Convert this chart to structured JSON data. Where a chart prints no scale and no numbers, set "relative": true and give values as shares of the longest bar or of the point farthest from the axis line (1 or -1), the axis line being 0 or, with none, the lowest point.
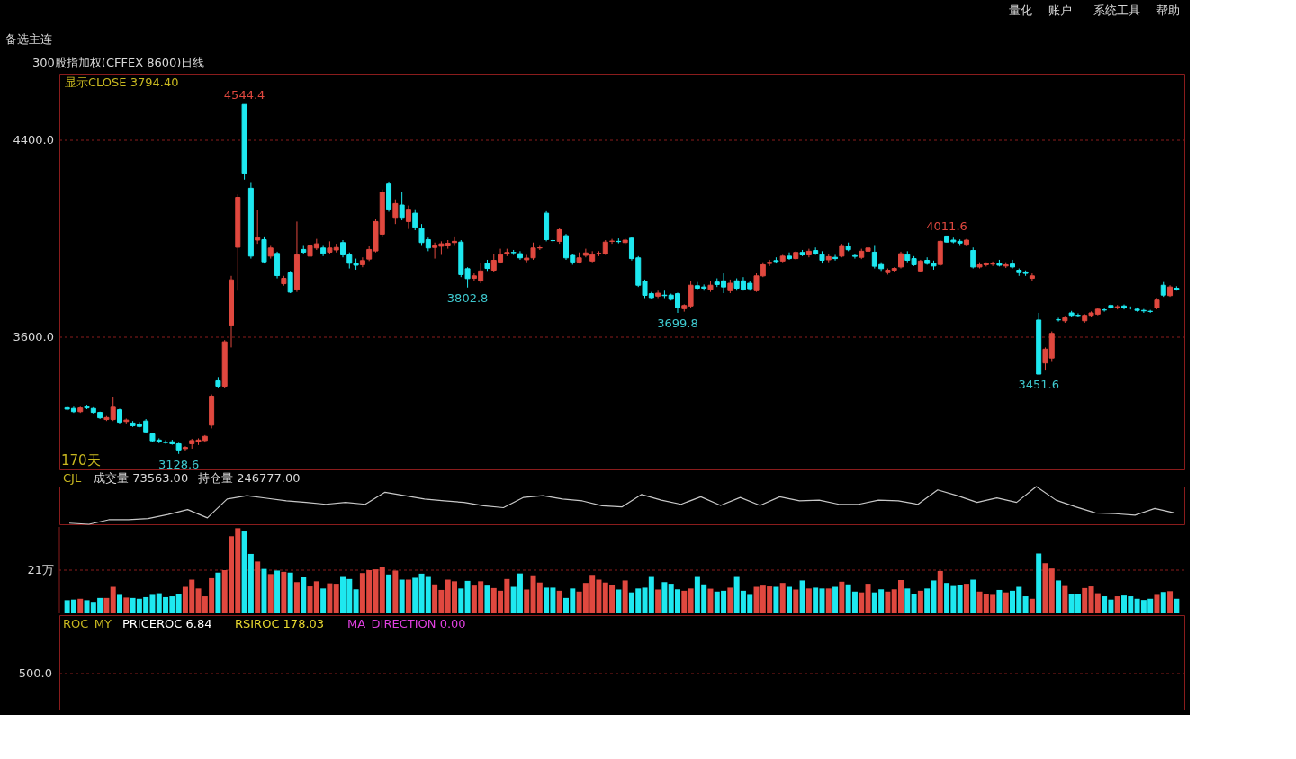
{
  "chart_data": [
    {
      "type": "candlestick",
      "title": "300股指加权(CFFEX 8600)日线",
      "subtitle": "显示CLOSE 3794.40",
      "categories": [
        null,
        null,
        null,
        null,
        null,
        null,
        null,
        null,
        null,
        null,
        null,
        null,
        null,
        null,
        null,
        null,
        null,
        null,
        null,
        null,
        null,
        null,
        null,
        null,
        null,
        null,
        null,
        null,
        null,
        null,
        null,
        null,
        null,
        null,
        null,
        null,
        null,
        null,
        null,
        null,
        null,
        null,
        null,
        null,
        null,
        null,
        null,
        null,
        null,
        null,
        null,
        null,
        null,
        null,
        null,
        null,
        null,
        null,
        null,
        null,
        null,
        null,
        null,
        null,
        null,
        null,
        null,
        null,
        null,
        null,
        null,
        null,
        null,
        null,
        null,
        null,
        null,
        null,
        null,
        null,
        null,
        null,
        null,
        null,
        null,
        null,
        null,
        null,
        null,
        null,
        null,
        null,
        null,
        null,
        null,
        null,
        null,
        null,
        null,
        null,
        null,
        null,
        null,
        null,
        null,
        null,
        null,
        null,
        null,
        null,
        null,
        null,
        null,
        null,
        null,
        null,
        null,
        null,
        null,
        null,
        null,
        null,
        null,
        null,
        null,
        null,
        null,
        null,
        null,
        null,
        null,
        null,
        null,
        null,
        null,
        null,
        null,
        null,
        null,
        null,
        null,
        null,
        null,
        null,
        null,
        null,
        null,
        null,
        null,
        null,
        null,
        null,
        null,
        null,
        null,
        null,
        null,
        null,
        null,
        null,
        null,
        null,
        null,
        null,
        null,
        null,
        null,
        null,
        null,
        null
      ],
      "ohlc": [
        [
          3316,
          3325,
          3305,
          3310
        ],
        [
          3313,
          3320,
          3295,
          3300
        ],
        [
          3300,
          3320,
          3295,
          3315
        ],
        [
          3320,
          3328,
          3310,
          3315
        ],
        [
          3313,
          3318,
          3292,
          3297
        ],
        [
          3297,
          3300,
          3270,
          3275
        ],
        [
          3268,
          3282,
          3262,
          3276
        ],
        [
          3268,
          3358,
          3262,
          3318
        ],
        [
          3308,
          3312,
          3250,
          3257
        ],
        [
          3260,
          3272,
          3252,
          3266
        ],
        [
          3254,
          3262,
          3238,
          3243
        ],
        [
          3250,
          3258,
          3236,
          3240
        ],
        [
          3262,
          3270,
          3212,
          3218
        ],
        [
          3210,
          3214,
          3176,
          3182
        ],
        [
          3185,
          3192,
          3172,
          3178
        ],
        [
          3176,
          3184,
          3170,
          3175
        ],
        [
          3178,
          3186,
          3166,
          3170
        ],
        [
          3170,
          3174,
          3128.6,
          3145
        ],
        [
          3150,
          3160,
          3140,
          3155
        ],
        [
          3170,
          3190,
          3150,
          3183
        ],
        [
          3178,
          3192,
          3165,
          3185
        ],
        [
          3183,
          3205,
          3175,
          3200
        ],
        [
          3245,
          3370,
          3232,
          3363
        ],
        [
          3425,
          3440,
          3398,
          3403
        ],
        [
          3403,
          3590,
          3395,
          3583
        ],
        [
          3650,
          3850,
          3560,
          3834
        ],
        [
          3966,
          4180,
          3790,
          4168
        ],
        [
          4544.4,
          4544.4,
          4240,
          4266
        ],
        [
          4205,
          4230,
          3920,
          3930
        ],
        [
          3995,
          4117,
          3980,
          4005
        ],
        [
          3997,
          4010,
          3900,
          3907
        ],
        [
          3930,
          3975,
          3920,
          3963
        ],
        [
          3941,
          3948,
          3840,
          3851
        ],
        [
          3818,
          3850,
          3810,
          3840
        ],
        [
          3862,
          3870,
          3780,
          3784
        ],
        [
          3795,
          4070,
          3785,
          3935
        ],
        [
          3957,
          3975,
          3940,
          3946
        ],
        [
          3930,
          3990,
          3925,
          3975
        ],
        [
          3963,
          4000,
          3955,
          3980
        ],
        [
          3963,
          3975,
          3930,
          3941
        ],
        [
          3946,
          3990,
          3940,
          3963
        ],
        [
          3955,
          3980,
          3945,
          3965
        ],
        [
          3985,
          3995,
          3925,
          3935
        ],
        [
          3935,
          3945,
          3880,
          3901
        ],
        [
          3901,
          3920,
          3875,
          3893
        ],
        [
          3895,
          3925,
          3885,
          3912
        ],
        [
          3918,
          3970,
          3910,
          3957
        ],
        [
          3951,
          4080,
          3945,
          4070
        ],
        [
          4019,
          4200,
          4010,
          4188
        ],
        [
          4222,
          4232,
          4110,
          4120
        ],
        [
          4087,
          4160,
          4060,
          4143
        ],
        [
          4137,
          4190,
          4075,
          4087
        ],
        [
          4070,
          4135,
          4040,
          4120
        ],
        [
          4104,
          4120,
          4035,
          4047
        ],
        [
          4042,
          4060,
          3975,
          3985
        ],
        [
          3997,
          4005,
          3950,
          3963
        ],
        [
          3965,
          3985,
          3920,
          3975
        ],
        [
          3970,
          3990,
          3935,
          3980
        ],
        [
          3975,
          3995,
          3960,
          3982
        ],
        [
          3985,
          4010,
          3975,
          3990
        ],
        [
          3987,
          3995,
          3845,
          3855
        ],
        [
          3879,
          3885,
          3802.8,
          3839
        ],
        [
          3840,
          3860,
          3830,
          3850
        ],
        [
          3829,
          3903,
          3820,
          3870
        ],
        [
          3900,
          3915,
          3870,
          3880
        ],
        [
          3873,
          3940,
          3865,
          3913
        ],
        [
          3906,
          3960,
          3900,
          3936
        ],
        [
          3940,
          3960,
          3930,
          3945
        ],
        [
          3945,
          3955,
          3935,
          3944
        ],
        [
          3940,
          3950,
          3915,
          3923
        ],
        [
          3915,
          3935,
          3905,
          3922
        ],
        [
          3923,
          3985,
          3915,
          3963
        ],
        [
          3963,
          3975,
          3955,
          3964
        ],
        [
          4104,
          4112,
          3990,
          3997
        ],
        [
          3993,
          4000,
          3985,
          3993
        ],
        [
          3990,
          4045,
          3980,
          4037
        ],
        [
          4013,
          4020,
          3915,
          3923
        ],
        [
          3933,
          3940,
          3895,
          3906
        ],
        [
          3906,
          3945,
          3900,
          3923
        ],
        [
          3933,
          3960,
          3925,
          3943
        ],
        [
          3910,
          3950,
          3905,
          3936
        ],
        [
          3940,
          3950,
          3930,
          3941
        ],
        [
          3940,
          3995,
          3935,
          3987
        ],
        [
          3990,
          4000,
          3980,
          3991
        ],
        [
          3990,
          4002,
          3982,
          3989
        ],
        [
          3985,
          4002,
          3978,
          3995
        ],
        [
          4003,
          4008,
          3912,
          3920
        ],
        [
          3923,
          3930,
          3805,
          3812
        ],
        [
          3829,
          3835,
          3760,
          3771
        ],
        [
          3778,
          3785,
          3755,
          3762
        ],
        [
          3768,
          3790,
          3760,
          3780
        ],
        [
          3772,
          3790,
          3760,
          3770
        ],
        [
          3772,
          3778,
          3750,
          3755
        ],
        [
          3778,
          3782,
          3699.8,
          3721
        ],
        [
          3717,
          3735,
          3705,
          3730
        ],
        [
          3728,
          3830,
          3720,
          3812
        ],
        [
          3810,
          3825,
          3795,
          3800
        ],
        [
          3805,
          3815,
          3790,
          3800
        ],
        [
          3795,
          3830,
          3785,
          3812
        ],
        [
          3825,
          3840,
          3805,
          3815
        ],
        [
          3830,
          3860,
          3780,
          3805
        ],
        [
          3790,
          3835,
          3780,
          3820
        ],
        [
          3830,
          3840,
          3790,
          3800
        ],
        [
          3830,
          3845,
          3790,
          3795
        ],
        [
          3820,
          3830,
          3790,
          3798
        ],
        [
          3790,
          3860,
          3785,
          3850
        ],
        [
          3850,
          3905,
          3845,
          3895
        ],
        [
          3900,
          3915,
          3890,
          3905
        ],
        [
          3912,
          3925,
          3900,
          3908
        ],
        [
          3910,
          3935,
          3905,
          3930
        ],
        [
          3930,
          3945,
          3915,
          3920
        ],
        [
          3920,
          3950,
          3915,
          3945
        ],
        [
          3945,
          3955,
          3930,
          3935
        ],
        [
          3935,
          3960,
          3925,
          3950
        ],
        [
          3953,
          3965,
          3935,
          3940
        ],
        [
          3936,
          3950,
          3900,
          3913
        ],
        [
          3915,
          3940,
          3905,
          3928
        ],
        [
          3925,
          3935,
          3912,
          3920
        ],
        [
          3930,
          3980,
          3925,
          3973
        ],
        [
          3970,
          3985,
          3950,
          3956
        ],
        [
          3932,
          3940,
          3920,
          3929
        ],
        [
          3925,
          3960,
          3918,
          3950
        ],
        [
          3950,
          3970,
          3945,
          3963
        ],
        [
          3946,
          3975,
          3880,
          3889
        ],
        [
          3896,
          3905,
          3870,
          3879
        ],
        [
          3863,
          3880,
          3855,
          3873
        ],
        [
          3873,
          3885,
          3865,
          3880
        ],
        [
          3886,
          3948,
          3880,
          3940
        ],
        [
          3936,
          3950,
          3905,
          3913
        ],
        [
          3920,
          3930,
          3890,
          3895
        ],
        [
          3870,
          3915,
          3865,
          3910
        ],
        [
          3913,
          3925,
          3895,
          3900
        ],
        [
          3900,
          3912,
          3875,
          3890
        ],
        [
          3896,
          3995,
          3890,
          3990
        ],
        [
          4011.6,
          4011.6,
          3985,
          3987
        ],
        [
          3995,
          4005,
          3982,
          3988
        ],
        [
          3990,
          3998,
          3975,
          3983
        ],
        [
          3978,
          4000,
          3972,
          3995
        ],
        [
          3953,
          3965,
          3880,
          3886
        ],
        [
          3886,
          3905,
          3880,
          3895
        ],
        [
          3895,
          3905,
          3888,
          3900
        ],
        [
          3898,
          3908,
          3890,
          3898
        ],
        [
          3900,
          3915,
          3888,
          3893
        ],
        [
          3890,
          3905,
          3882,
          3895
        ],
        [
          3898,
          3915,
          3880,
          3886
        ],
        [
          3873,
          3880,
          3850,
          3863
        ],
        [
          3866,
          3872,
          3850,
          3860
        ],
        [
          3840,
          3860,
          3830,
          3850
        ],
        [
          3671,
          3700,
          3451.6,
          3452
        ],
        [
          3497,
          3560,
          3470,
          3553
        ],
        [
          3517,
          3625,
          3505,
          3617
        ],
        [
          3672,
          3680,
          3665,
          3672
        ],
        [
          3668,
          3688,
          3660,
          3680
        ],
        [
          3700,
          3708,
          3685,
          3690
        ],
        [
          3690,
          3698,
          3684,
          3690
        ],
        [
          3668,
          3695,
          3660,
          3690
        ],
        [
          3690,
          3706,
          3684,
          3700
        ],
        [
          3695,
          3720,
          3690,
          3715
        ],
        [
          3712,
          3720,
          3705,
          3712
        ],
        [
          3730,
          3738,
          3715,
          3720
        ],
        [
          3720,
          3732,
          3714,
          3725
        ],
        [
          3728,
          3734,
          3714,
          3720
        ],
        [
          3720,
          3726,
          3714,
          3720
        ],
        [
          3715,
          3722,
          3705,
          3710
        ],
        [
          3710,
          3716,
          3700,
          3708
        ],
        [
          3706,
          3712,
          3700,
          3706
        ],
        [
          3720,
          3760,
          3715,
          3752
        ],
        [
          3812,
          3825,
          3765,
          3772
        ],
        [
          3770,
          3812,
          3765,
          3805
        ],
        [
          3800,
          3808,
          3790,
          3794.4
        ]
      ],
      "colors": [
        "#1ee8f0",
        "#1ee8f0",
        "#e0483f",
        "#1ee8f0",
        "#1ee8f0",
        "#1ee8f0",
        "#e0483f",
        "#e0483f",
        "#1ee8f0",
        "#e0483f",
        "#1ee8f0",
        "#1ee8f0",
        "#1ee8f0",
        "#1ee8f0",
        "#1ee8f0",
        "#1ee8f0",
        "#1ee8f0",
        "#1ee8f0",
        "#e0483f",
        "#e0483f",
        "#e0483f",
        "#e0483f",
        "#e0483f",
        "#1ee8f0",
        "#e0483f",
        "#e0483f",
        "#e0483f",
        "#1ee8f0",
        "#1ee8f0",
        "#e0483f",
        "#1ee8f0",
        "#e0483f",
        "#1ee8f0",
        "#e0483f",
        "#1ee8f0",
        "#e0483f",
        "#1ee8f0",
        "#e0483f",
        "#e0483f",
        "#1ee8f0",
        "#e0483f",
        "#e0483f",
        "#1ee8f0",
        "#1ee8f0",
        "#1ee8f0",
        "#e0483f",
        "#e0483f",
        "#e0483f",
        "#e0483f",
        "#1ee8f0",
        "#e0483f",
        "#1ee8f0",
        "#e0483f",
        "#1ee8f0",
        "#1ee8f0",
        "#1ee8f0",
        "#e0483f",
        "#e0483f",
        "#e0483f",
        "#e0483f",
        "#1ee8f0",
        "#1ee8f0",
        "#e0483f",
        "#e0483f",
        "#1ee8f0",
        "#e0483f",
        "#e0483f",
        "#e0483f",
        "#1ee8f0",
        "#1ee8f0",
        "#e0483f",
        "#e0483f",
        "#e0483f",
        "#1ee8f0",
        "#1ee8f0",
        "#e0483f",
        "#1ee8f0",
        "#1ee8f0",
        "#e0483f",
        "#e0483f",
        "#e0483f",
        "#e0483f",
        "#e0483f",
        "#e0483f",
        "#1ee8f0",
        "#e0483f",
        "#1ee8f0",
        "#1ee8f0",
        "#1ee8f0",
        "#1ee8f0",
        "#e0483f",
        "#1ee8f0",
        "#1ee8f0",
        "#1ee8f0",
        "#e0483f",
        "#e0483f",
        "#1ee8f0",
        "#1ee8f0",
        "#e0483f",
        "#1ee8f0",
        "#1ee8f0",
        "#e0483f",
        "#1ee8f0",
        "#1ee8f0",
        "#1ee8f0",
        "#e0483f",
        "#e0483f",
        "#e0483f",
        "#1ee8f0",
        "#e0483f",
        "#1ee8f0",
        "#e0483f",
        "#1ee8f0",
        "#e0483f",
        "#1ee8f0",
        "#1ee8f0",
        "#e0483f",
        "#1ee8f0",
        "#e0483f",
        "#1ee8f0",
        "#1ee8f0",
        "#e0483f",
        "#e0483f",
        "#1ee8f0",
        "#1ee8f0",
        "#e0483f",
        "#e0483f",
        "#e0483f",
        "#1ee8f0",
        "#1ee8f0",
        "#e0483f",
        "#1ee8f0",
        "#1ee8f0",
        "#e0483f",
        "#1ee8f0",
        "#1ee8f0",
        "#1ee8f0",
        "#e0483f",
        "#1ee8f0",
        "#e0483f",
        "#e0483f",
        "#e0483f",
        "#1ee8f0",
        "#e0483f",
        "#1ee8f0",
        "#1ee8f0",
        "#1ee8f0",
        "#e0483f",
        "#1ee8f0",
        "#e0483f",
        "#e0483f",
        "#1ee8f0",
        "#e0483f",
        "#1ee8f0",
        "#1ee8f0",
        "#e0483f",
        "#e0483f",
        "#e0483f",
        "#1ee8f0",
        "#1ee8f0",
        "#e0483f",
        "#1ee8f0",
        "#1ee8f0",
        "#1ee8f0",
        "#1ee8f0",
        "#1ee8f0",
        "#e0483f",
        "#1ee8f0",
        "#e0483f",
        "#1ee8f0"
      ],
      "ylim": [
        3066,
        4669
      ],
      "yticks": [
        {
          "value": 3600,
          "label": "3600.0"
        },
        {
          "value": 4400,
          "label": "4400.0"
        }
      ],
      "grid": "y",
      "tick_labels": "y",
      "annotations": [
        "170天",
        "备选主连",
        "量化",
        "账户",
        "系统工具",
        "帮助",
        {
          "text": "4544.4",
          "y": 4544.4
        },
        {
          "text": "3128.6",
          "y": 3128.6
        },
        {
          "text": "3802.8",
          "y": 3802.8
        },
        {
          "text": "3699.8",
          "y": 3699.8
        },
        {
          "text": "4011.6",
          "y": 4011.6
        },
        {
          "text": "3451.6",
          "y": 3451.6
        }
      ]
    },
    {
      "type": "line",
      "relative": true,
      "title": "CJL",
      "annotations": [
        "成交量 73563.00",
        "持仓量 246777.00"
      ],
      "categories": [
        null,
        null,
        null,
        null,
        null,
        null,
        null,
        null,
        null,
        null,
        null,
        null,
        null,
        null,
        null,
        null,
        null,
        null,
        null,
        null,
        null,
        null,
        null,
        null,
        null,
        null,
        null,
        null,
        null,
        null,
        null,
        null,
        null,
        null,
        null,
        null,
        null,
        null,
        null,
        null,
        null,
        null,
        null,
        null,
        null,
        null,
        null,
        null,
        null,
        null,
        null,
        null,
        null,
        null,
        null,
        null,
        null
      ],
      "series": [
        {
          "color": "#c8c8c8",
          "values": [
            0.03,
            0.0,
            0.12,
            0.12,
            0.15,
            0.26,
            0.39,
            0.17,
            0.67,
            0.76,
            0.69,
            0.62,
            0.58,
            0.53,
            0.58,
            0.53,
            0.85,
            0.76,
            0.67,
            0.62,
            0.58,
            0.49,
            0.44,
            0.71,
            0.76,
            0.67,
            0.62,
            0.49,
            0.46,
            0.79,
            0.64,
            0.53,
            0.73,
            0.5,
            0.71,
            0.5,
            0.73,
            0.62,
            0.64,
            0.53,
            0.53,
            0.64,
            0.62,
            0.53,
            0.91,
            0.76,
            0.58,
            0.7,
            0.58,
            1.0,
            0.64,
            0.46,
            0.3,
            0.28,
            0.24,
            0.42,
            0.3
          ]
        }
      ]
    },
    {
      "type": "bar",
      "categories": [
        null,
        null,
        null,
        null,
        null,
        null,
        null,
        null,
        null,
        null,
        null,
        null,
        null,
        null,
        null,
        null,
        null,
        null,
        null,
        null,
        null,
        null,
        null,
        null,
        null,
        null,
        null,
        null,
        null,
        null,
        null,
        null,
        null,
        null,
        null,
        null,
        null,
        null,
        null,
        null,
        null,
        null,
        null,
        null,
        null,
        null,
        null,
        null,
        null,
        null,
        null,
        null,
        null,
        null,
        null,
        null,
        null,
        null,
        null,
        null,
        null,
        null,
        null,
        null,
        null,
        null,
        null,
        null,
        null,
        null,
        null,
        null,
        null,
        null,
        null,
        null,
        null,
        null,
        null,
        null,
        null,
        null,
        null,
        null,
        null,
        null,
        null,
        null,
        null,
        null,
        null,
        null,
        null,
        null,
        null,
        null,
        null,
        null,
        null,
        null,
        null,
        null,
        null,
        null,
        null,
        null,
        null,
        null,
        null,
        null,
        null,
        null,
        null,
        null,
        null,
        null,
        null,
        null,
        null,
        null,
        null,
        null,
        null,
        null,
        null,
        null,
        null,
        null,
        null,
        null,
        null,
        null,
        null,
        null,
        null,
        null,
        null,
        null,
        null,
        null,
        null,
        null,
        null,
        null,
        null,
        null,
        null,
        null,
        null,
        null,
        null,
        null,
        null,
        null,
        null,
        null,
        null,
        null,
        null,
        null,
        null,
        null,
        null,
        null,
        null,
        null,
        null,
        null,
        null,
        null
      ],
      "values": [
        6.4,
        6.7,
        7.1,
        6.4,
        5.6,
        7.5,
        7.5,
        12.9,
        9.0,
        7.7,
        7.5,
        7.1,
        7.9,
        9.0,
        9.8,
        7.9,
        8.3,
        9.4,
        12.9,
        16.4,
        12.1,
        8.3,
        17.1,
        19.8,
        21.0,
        37.5,
        41.4,
        39.8,
        28.9,
        25.2,
        21.6,
        19.1,
        20.8,
        20.2,
        19.8,
        15.2,
        17.5,
        13.1,
        15.6,
        12.1,
        14.6,
        14.4,
        17.7,
        16.7,
        11.7,
        19.6,
        21.0,
        21.4,
        22.7,
        18.9,
        20.8,
        16.4,
        16.4,
        17.3,
        19.3,
        17.7,
        14.1,
        11.4,
        16.4,
        15.6,
        12.1,
        15.8,
        13.5,
        15.6,
        13.5,
        12.3,
        11.0,
        16.7,
        12.9,
        19.4,
        11.6,
        18.5,
        15.0,
        12.5,
        12.5,
        11.0,
        7.5,
        12.1,
        10.6,
        14.8,
        18.7,
        16.4,
        15.0,
        13.9,
        11.6,
        16.0,
        10.2,
        12.1,
        12.5,
        17.7,
        11.6,
        15.2,
        14.4,
        11.7,
        11.0,
        12.1,
        17.7,
        14.1,
        12.0,
        10.6,
        11.0,
        12.5,
        17.7,
        11.0,
        9.0,
        12.9,
        13.5,
        13.1,
        12.9,
        14.8,
        12.9,
        11.6,
        16.0,
        12.1,
        12.5,
        12.1,
        12.1,
        12.9,
        15.4,
        14.1,
        10.6,
        10.2,
        14.4,
        10.2,
        11.7,
        10.6,
        11.7,
        16.2,
        12.1,
        9.6,
        11.0,
        12.1,
        16.0,
        20.6,
        14.8,
        13.3,
        13.7,
        14.4,
        16.4,
        10.6,
        9.2,
        9.0,
        11.4,
        10.2,
        11.0,
        12.9,
        8.3,
        7.1,
        29.1,
        24.4,
        21.8,
        16.0,
        13.3,
        9.4,
        9.4,
        12.3,
        13.1,
        9.8,
        8.3,
        6.7,
        8.3,
        8.7,
        8.3,
        7.1,
        6.5,
        7.1,
        9.0,
        10.4,
        10.8,
        7.1
      ],
      "colors": [
        "#1ee8f0",
        "#1ee8f0",
        "#e0483f",
        "#1ee8f0",
        "#1ee8f0",
        "#1ee8f0",
        "#e0483f",
        "#e0483f",
        "#1ee8f0",
        "#e0483f",
        "#1ee8f0",
        "#1ee8f0",
        "#1ee8f0",
        "#1ee8f0",
        "#1ee8f0",
        "#1ee8f0",
        "#1ee8f0",
        "#1ee8f0",
        "#e0483f",
        "#e0483f",
        "#e0483f",
        "#e0483f",
        "#e0483f",
        "#1ee8f0",
        "#e0483f",
        "#e0483f",
        "#e0483f",
        "#1ee8f0",
        "#1ee8f0",
        "#e0483f",
        "#1ee8f0",
        "#e0483f",
        "#1ee8f0",
        "#e0483f",
        "#1ee8f0",
        "#e0483f",
        "#1ee8f0",
        "#e0483f",
        "#e0483f",
        "#1ee8f0",
        "#e0483f",
        "#e0483f",
        "#1ee8f0",
        "#1ee8f0",
        "#1ee8f0",
        "#e0483f",
        "#e0483f",
        "#e0483f",
        "#e0483f",
        "#1ee8f0",
        "#e0483f",
        "#1ee8f0",
        "#e0483f",
        "#1ee8f0",
        "#1ee8f0",
        "#1ee8f0",
        "#e0483f",
        "#e0483f",
        "#e0483f",
        "#e0483f",
        "#1ee8f0",
        "#1ee8f0",
        "#e0483f",
        "#e0483f",
        "#1ee8f0",
        "#e0483f",
        "#e0483f",
        "#e0483f",
        "#1ee8f0",
        "#1ee8f0",
        "#e0483f",
        "#e0483f",
        "#e0483f",
        "#1ee8f0",
        "#1ee8f0",
        "#e0483f",
        "#1ee8f0",
        "#1ee8f0",
        "#e0483f",
        "#e0483f",
        "#e0483f",
        "#e0483f",
        "#e0483f",
        "#e0483f",
        "#1ee8f0",
        "#e0483f",
        "#1ee8f0",
        "#1ee8f0",
        "#1ee8f0",
        "#1ee8f0",
        "#e0483f",
        "#1ee8f0",
        "#1ee8f0",
        "#1ee8f0",
        "#e0483f",
        "#e0483f",
        "#1ee8f0",
        "#1ee8f0",
        "#e0483f",
        "#1ee8f0",
        "#1ee8f0",
        "#e0483f",
        "#1ee8f0",
        "#1ee8f0",
        "#1ee8f0",
        "#e0483f",
        "#e0483f",
        "#e0483f",
        "#1ee8f0",
        "#e0483f",
        "#1ee8f0",
        "#e0483f",
        "#1ee8f0",
        "#e0483f",
        "#1ee8f0",
        "#1ee8f0",
        "#e0483f",
        "#1ee8f0",
        "#e0483f",
        "#1ee8f0",
        "#1ee8f0",
        "#e0483f",
        "#e0483f",
        "#1ee8f0",
        "#1ee8f0",
        "#e0483f",
        "#e0483f",
        "#e0483f",
        "#1ee8f0",
        "#1ee8f0",
        "#e0483f",
        "#1ee8f0",
        "#1ee8f0",
        "#e0483f",
        "#1ee8f0",
        "#1ee8f0",
        "#1ee8f0",
        "#e0483f",
        "#1ee8f0",
        "#e0483f",
        "#e0483f",
        "#e0483f",
        "#1ee8f0",
        "#e0483f",
        "#1ee8f0",
        "#1ee8f0",
        "#1ee8f0",
        "#e0483f",
        "#1ee8f0",
        "#e0483f",
        "#e0483f",
        "#1ee8f0",
        "#e0483f",
        "#1ee8f0",
        "#1ee8f0",
        "#e0483f",
        "#e0483f",
        "#e0483f",
        "#1ee8f0",
        "#1ee8f0",
        "#e0483f",
        "#1ee8f0",
        "#1ee8f0",
        "#1ee8f0",
        "#1ee8f0",
        "#1ee8f0",
        "#e0483f",
        "#1ee8f0",
        "#e0483f",
        "#1ee8f0"
      ],
      "ylim": [
        0,
        42
      ],
      "yticks": [
        {
          "value": 21,
          "label": "21万"
        }
      ],
      "ref_lines": [
        {
          "axis": "y",
          "value": 21,
          "color": "#8a1c1c",
          "line_style": "dashed"
        }
      ],
      "tick_labels": "y"
    },
    {
      "type": "other",
      "title": "ROC_MY",
      "annotations": [
        "PRICEROC 6.84",
        "RSIROC 178.03",
        "MA_DIRECTION 0.00",
        "500.0"
      ]
    }
  ]
}
